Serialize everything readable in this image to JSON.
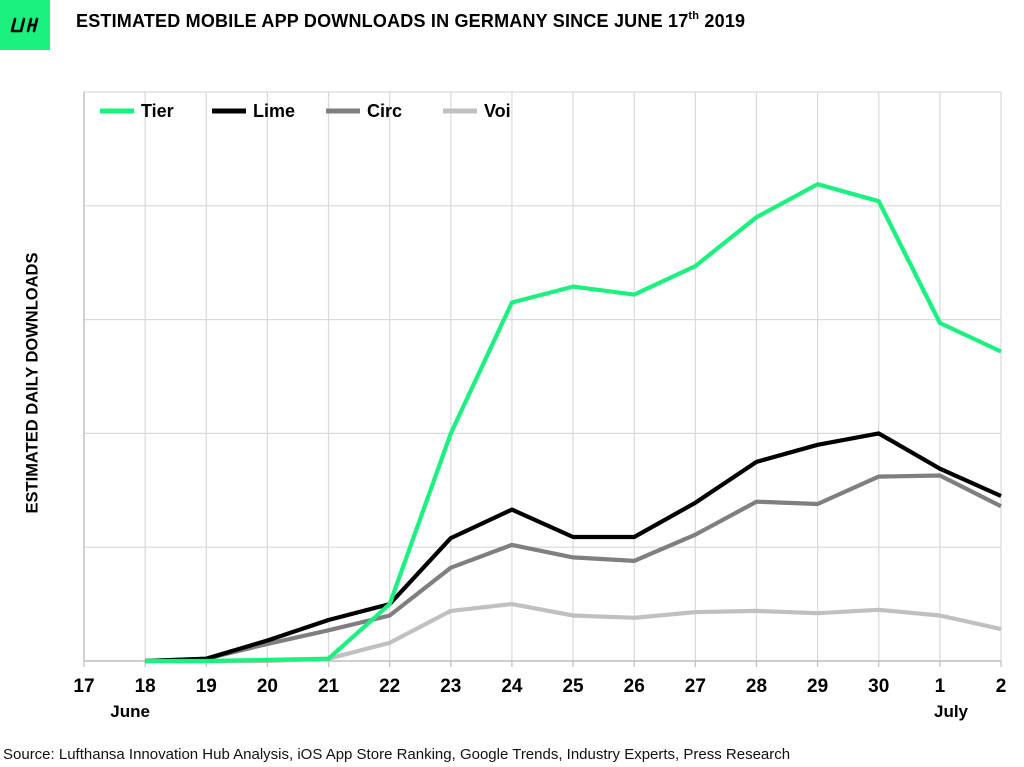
{
  "header": {
    "logo_text": "LIH",
    "title": "ESTIMATED MOBILE APP DOWNLOADS IN GERMANY SINCE JUNE  17",
    "title_sup": "th",
    "title_year": " 2019"
  },
  "source": "Source: Lufthansa Innovation Hub Analysis, iOS App Store Ranking, Google Trends, Industry Experts, Press Research",
  "colors": {
    "accent": "#1bf17f",
    "tier": "#1bf17f",
    "lime": "#000000",
    "circ": "#7f7f7f",
    "voi": "#c0c0c0"
  },
  "chart_data": {
    "type": "line",
    "title": "ESTIMATED MOBILE APP DOWNLOADS IN GERMANY SINCE JUNE 17th 2019",
    "ylabel": "ESTIMATED DAILY DOWNLOADS",
    "xlabel": "",
    "x": [
      "17",
      "18",
      "19",
      "20",
      "21",
      "22",
      "23",
      "24",
      "25",
      "26",
      "27",
      "28",
      "29",
      "30",
      "1",
      "2"
    ],
    "x_sublabels": [
      {
        "at": "18",
        "text": "June"
      },
      {
        "at": "2",
        "text": "July"
      }
    ],
    "y_tick_labels_shown": false,
    "ylim": [
      0,
      5
    ],
    "grid": true,
    "legend": "top-left",
    "series": [
      {
        "name": "Tier",
        "color": "#1bf17f",
        "values": [
          null,
          0.0,
          0.0,
          0.01,
          0.02,
          0.5,
          2.0,
          3.15,
          3.29,
          3.22,
          3.47,
          3.9,
          4.19,
          4.04,
          2.97,
          2.72
        ]
      },
      {
        "name": "Lime",
        "color": "#000000",
        "values": [
          null,
          0.0,
          0.02,
          0.18,
          0.36,
          0.5,
          1.08,
          1.33,
          1.09,
          1.09,
          1.39,
          1.75,
          1.9,
          2.0,
          1.69,
          1.45
        ]
      },
      {
        "name": "Circ",
        "color": "#7f7f7f",
        "values": [
          null,
          0.0,
          0.02,
          0.15,
          0.27,
          0.4,
          0.82,
          1.02,
          0.91,
          0.88,
          1.11,
          1.4,
          1.38,
          1.62,
          1.63,
          1.36
        ]
      },
      {
        "name": "Voi",
        "color": "#c0c0c0",
        "values": [
          null,
          0.0,
          0.0,
          0.0,
          0.02,
          0.16,
          0.44,
          0.5,
          0.4,
          0.38,
          0.43,
          0.44,
          0.42,
          0.45,
          0.4,
          0.28
        ]
      }
    ]
  }
}
